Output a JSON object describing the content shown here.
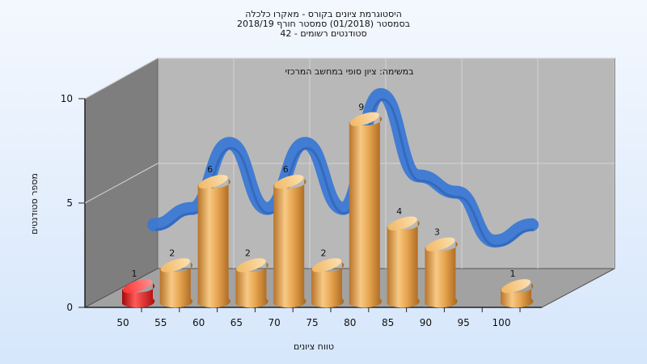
{
  "titles": {
    "line1": "היסטוגרמת ציונים בקורס - מאקרו כלכלה",
    "line2": "בסמסטר (01/2018) סמסטר חורף 2018/19",
    "line3": "סטודנטים רשומים - 42"
  },
  "chart_data": {
    "type": "bar",
    "title": "במשימה: ציון סופי במחשב המרכזי",
    "xlabel": "טווח ציונים",
    "ylabel": "מספר סטודנטים",
    "categories": [
      "50",
      "55",
      "60",
      "65",
      "70",
      "75",
      "80",
      "85",
      "90",
      "95",
      "100"
    ],
    "x_ticks": [
      "50",
      "55",
      "60",
      "65",
      "70",
      "75",
      "80",
      "85",
      "90",
      "95",
      "100"
    ],
    "y_ticks": [
      "0",
      "5",
      "10"
    ],
    "ylim": [
      0,
      10
    ],
    "values": [
      1,
      2,
      6,
      2,
      6,
      2,
      9,
      4,
      3,
      0,
      1
    ],
    "value_labels": [
      "1",
      "2",
      "6",
      "2",
      "6",
      "2",
      "9",
      "4",
      "3",
      "",
      "1"
    ],
    "bar_colors": [
      "#e01818",
      "#e2a04a",
      "#e2a04a",
      "#e2a04a",
      "#e2a04a",
      "#e2a04a",
      "#e2a04a",
      "#e2a04a",
      "#e2a04a",
      "#e2a04a",
      "#e2a04a"
    ],
    "curve_color": "#3b78d4",
    "grid": true,
    "legend": "none"
  }
}
